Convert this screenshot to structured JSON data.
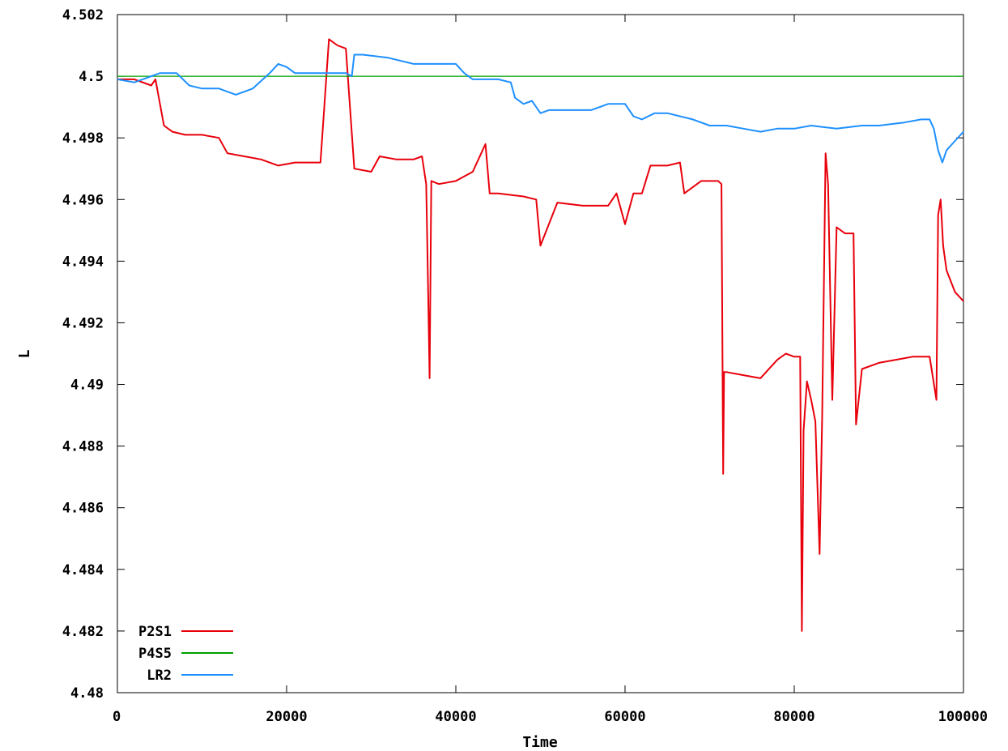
{
  "chart_data": {
    "type": "line",
    "title": "",
    "xlabel": "Time",
    "ylabel": "L",
    "xlim": [
      0,
      100000
    ],
    "ylim": [
      4.48,
      4.502
    ],
    "x_ticks": [
      0,
      20000,
      40000,
      60000,
      80000,
      100000
    ],
    "x_tick_labels": [
      "0",
      "20000",
      "40000",
      "60000",
      "80000",
      "100000"
    ],
    "y_ticks": [
      4.48,
      4.482,
      4.484,
      4.486,
      4.488,
      4.49,
      4.492,
      4.494,
      4.496,
      4.498,
      4.5,
      4.502
    ],
    "y_tick_labels": [
      "4.48",
      "4.482",
      "4.484",
      "4.486",
      "4.488",
      "4.49",
      "4.492",
      "4.494",
      "4.496",
      "4.498",
      "4.5",
      "4.502"
    ],
    "grid": false,
    "legend_position": "bottom-left",
    "series": [
      {
        "name": "P2S1",
        "color": "#e8000b",
        "x": [
          0,
          2000,
          4000,
          4500,
          5500,
          6500,
          8000,
          10000,
          12000,
          13000,
          15000,
          17000,
          19000,
          21000,
          23000,
          24000,
          25000,
          26000,
          27000,
          28000,
          30000,
          31000,
          33000,
          35000,
          36000,
          36500,
          36700,
          36900,
          37100,
          38000,
          40000,
          42000,
          43500,
          44000,
          45000,
          48000,
          49500,
          50000,
          52000,
          55000,
          58000,
          59000,
          60000,
          61000,
          62000,
          63000,
          64000,
          65000,
          66500,
          67000,
          69000,
          71000,
          71400,
          71600,
          71700,
          72000,
          74000,
          76000,
          78000,
          79000,
          80000,
          80700,
          80900,
          81100,
          81500,
          82000,
          82500,
          83000,
          83300,
          83700,
          84000,
          84500,
          85000,
          86000,
          87000,
          87300,
          88000,
          90000,
          92000,
          94000,
          96000,
          96800,
          97000,
          97300,
          97600,
          98000,
          99000,
          100000
        ],
        "values": [
          4.4999,
          4.4999,
          4.4997,
          4.4999,
          4.4984,
          4.4982,
          4.4981,
          4.4981,
          4.498,
          4.4975,
          4.4974,
          4.4973,
          4.4971,
          4.4972,
          4.4972,
          4.4972,
          4.5012,
          4.501,
          4.5009,
          4.497,
          4.4969,
          4.4974,
          4.4973,
          4.4973,
          4.4974,
          4.4965,
          4.4935,
          4.4902,
          4.4966,
          4.4965,
          4.4966,
          4.4969,
          4.4978,
          4.4962,
          4.4962,
          4.4961,
          4.496,
          4.4945,
          4.4959,
          4.4958,
          4.4958,
          4.4962,
          4.4952,
          4.4962,
          4.4962,
          4.4971,
          4.4971,
          4.4971,
          4.4972,
          4.4962,
          4.4966,
          4.4966,
          4.4965,
          4.4871,
          4.4904,
          4.4904,
          4.4903,
          4.4902,
          4.4908,
          4.491,
          4.4909,
          4.4909,
          4.482,
          4.4885,
          4.4901,
          4.4895,
          4.4888,
          4.4845,
          4.489,
          4.4975,
          4.4965,
          4.4895,
          4.4951,
          4.4949,
          4.4949,
          4.4887,
          4.4905,
          4.4907,
          4.4908,
          4.4909,
          4.4909,
          4.4895,
          4.4955,
          4.496,
          4.4945,
          4.4937,
          4.493,
          4.4927
        ]
      },
      {
        "name": "P4S5",
        "color": "#00a000",
        "x": [
          0,
          100000
        ],
        "values": [
          4.5,
          4.5
        ]
      },
      {
        "name": "LR2",
        "color": "#1e90ff",
        "x": [
          0,
          2000,
          5000,
          7000,
          8500,
          10000,
          12000,
          14000,
          16000,
          18000,
          19000,
          20000,
          21000,
          23000,
          25000,
          27000,
          27700,
          28000,
          29000,
          32000,
          35000,
          38000,
          40000,
          41000,
          42000,
          45000,
          46500,
          47000,
          48000,
          49000,
          50000,
          51000,
          52000,
          54000,
          56000,
          58000,
          60000,
          61000,
          62000,
          63500,
          65000,
          68000,
          70000,
          72000,
          74000,
          76000,
          78000,
          80000,
          82000,
          85000,
          88000,
          90000,
          93000,
          95000,
          96000,
          96500,
          97000,
          97500,
          98000,
          99000,
          100000
        ],
        "values": [
          4.4999,
          4.4998,
          4.5001,
          4.5001,
          4.4997,
          4.4996,
          4.4996,
          4.4994,
          4.4996,
          4.5001,
          4.5004,
          4.5003,
          4.5001,
          4.5001,
          4.5001,
          4.5001,
          4.5,
          4.5007,
          4.5007,
          4.5006,
          4.5004,
          4.5004,
          4.5004,
          4.5001,
          4.4999,
          4.4999,
          4.4998,
          4.4993,
          4.4991,
          4.4992,
          4.4988,
          4.4989,
          4.4989,
          4.4989,
          4.4989,
          4.4991,
          4.4991,
          4.4987,
          4.4986,
          4.4988,
          4.4988,
          4.4986,
          4.4984,
          4.4984,
          4.4983,
          4.4982,
          4.4983,
          4.4983,
          4.4984,
          4.4983,
          4.4984,
          4.4984,
          4.4985,
          4.4986,
          4.4986,
          4.4983,
          4.4976,
          4.4972,
          4.4976,
          4.4979,
          4.4982
        ]
      }
    ]
  }
}
